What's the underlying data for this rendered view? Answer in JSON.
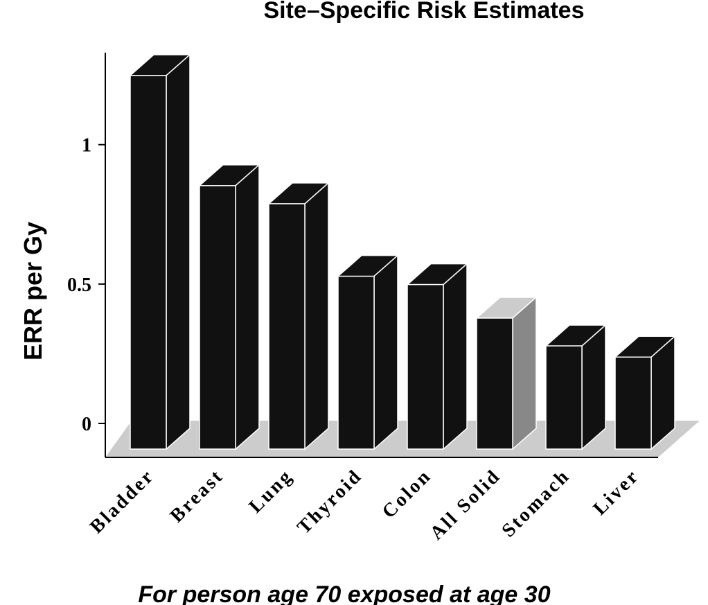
{
  "chart_data": {
    "type": "bar3d",
    "title": "Site–Specific Risk Estimates",
    "y_label": "ERR per Gy",
    "x_label": "For person age 70 exposed at age 30",
    "categories": [
      "Bladder",
      "Breast",
      "Lung",
      "Thyroid",
      "Colon",
      "All Solid",
      "Stomach",
      "Liver"
    ],
    "values": [
      1.34,
      0.945,
      0.88,
      0.62,
      0.59,
      0.47,
      0.37,
      0.33
    ],
    "colors": [
      "#111111",
      "#111111",
      "#111111",
      "#111111",
      "#111111",
      "#888888",
      "#111111",
      "#111111"
    ],
    "ylim": [
      0,
      1.33
    ],
    "yticks": [
      0,
      0.5,
      1
    ]
  }
}
